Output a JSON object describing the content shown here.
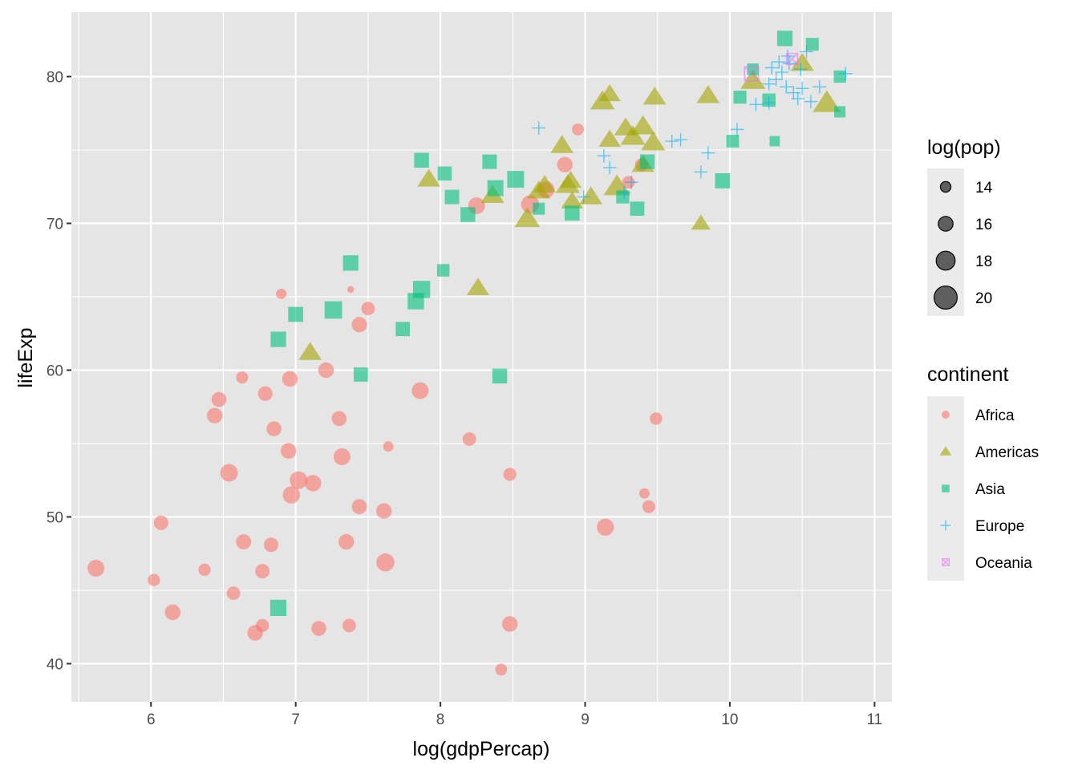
{
  "chart_data": {
    "type": "scatter",
    "xlabel": "log(gdpPercap)",
    "ylabel": "lifeExp",
    "xlim": [
      5.45,
      11.12
    ],
    "ylim": [
      37.4,
      84.4
    ],
    "x_ticks": [
      6,
      7,
      8,
      9,
      10,
      11
    ],
    "y_ticks": [
      40,
      50,
      60,
      70,
      80
    ],
    "grid": true,
    "background": "#e5e5e5",
    "legends": {
      "size": {
        "title": "log(pop)",
        "values": [
          14,
          16,
          18,
          20
        ],
        "labels": [
          "14",
          "16",
          "18",
          "20"
        ]
      },
      "color_shape": {
        "title": "continent",
        "items": [
          {
            "label": "Africa",
            "color": "#f8766d",
            "shape": "circle"
          },
          {
            "label": "Americas",
            "color": "#a3a500",
            "shape": "triangle"
          },
          {
            "label": "Asia",
            "color": "#00bf7d",
            "shape": "square"
          },
          {
            "label": "Europe",
            "color": "#00b0f6",
            "shape": "plus"
          },
          {
            "label": "Oceania",
            "color": "#e76bf3",
            "shape": "square-cross"
          }
        ]
      },
      "placement": "right"
    },
    "series": [
      {
        "name": "Africa",
        "points": [
          [
            5.62,
            46.5,
            17
          ],
          [
            6.02,
            45.7,
            14.8
          ],
          [
            6.07,
            49.6,
            15.9
          ],
          [
            6.15,
            43.5,
            16.4
          ],
          [
            6.37,
            46.4,
            14.8
          ],
          [
            6.44,
            56.9,
            16.4
          ],
          [
            6.47,
            58.0,
            16.1
          ],
          [
            6.54,
            53.0,
            17.4
          ],
          [
            6.57,
            44.8,
            15.4
          ],
          [
            6.63,
            59.5,
            14.7
          ],
          [
            6.64,
            48.3,
            16.2
          ],
          [
            6.77,
            46.3,
            15.9
          ],
          [
            6.77,
            42.6,
            15.2
          ],
          [
            6.72,
            42.1,
            16.4
          ],
          [
            6.79,
            58.4,
            15.9
          ],
          [
            6.83,
            48.1,
            15.9
          ],
          [
            6.85,
            56.0,
            16.1
          ],
          [
            6.9,
            65.2,
            13.9
          ],
          [
            6.95,
            54.5,
            16.4
          ],
          [
            6.96,
            59.4,
            16.4
          ],
          [
            6.97,
            51.5,
            17.2
          ],
          [
            7.02,
            52.5,
            17.4
          ],
          [
            7.12,
            52.3,
            16.8
          ],
          [
            7.16,
            42.4,
            16.1
          ],
          [
            7.21,
            60.0,
            16.4
          ],
          [
            7.3,
            56.7,
            16.1
          ],
          [
            7.32,
            54.1,
            17.0
          ],
          [
            7.35,
            48.3,
            16.4
          ],
          [
            7.37,
            42.6,
            15.4
          ],
          [
            7.38,
            65.5,
            12.2
          ],
          [
            7.44,
            50.7,
            16.1
          ],
          [
            7.44,
            63.1,
            16.3
          ],
          [
            7.5,
            64.2,
            15.4
          ],
          [
            7.61,
            50.4,
            16.4
          ],
          [
            7.62,
            46.9,
            17.6
          ],
          [
            7.64,
            54.8,
            13.9
          ],
          [
            7.86,
            58.6,
            17.0
          ],
          [
            8.2,
            55.3,
            15.4
          ],
          [
            8.25,
            71.2,
            17.0
          ],
          [
            8.42,
            39.6,
            14.6
          ],
          [
            8.48,
            52.9,
            15.2
          ],
          [
            8.48,
            42.7,
            16.4
          ],
          [
            8.62,
            71.3,
            17.6
          ],
          [
            8.73,
            72.3,
            17.0
          ],
          [
            8.86,
            74.0,
            16.4
          ],
          [
            8.95,
            76.4,
            14.6
          ],
          [
            9.14,
            49.3,
            17.1
          ],
          [
            9.3,
            72.8,
            15.0
          ],
          [
            9.41,
            51.6,
            13.9
          ],
          [
            9.44,
            50.7,
            15.1
          ],
          [
            9.49,
            56.7,
            14.9
          ],
          [
            9.39,
            74.0,
            15.2
          ]
        ]
      },
      {
        "name": "Americas",
        "points": [
          [
            7.1,
            61.2,
            16.4
          ],
          [
            7.92,
            73.0,
            16.3
          ],
          [
            8.26,
            65.6,
            16.2
          ],
          [
            8.36,
            71.9,
            16.5
          ],
          [
            8.6,
            70.3,
            17.2
          ],
          [
            8.68,
            72.2,
            16.4
          ],
          [
            8.72,
            72.6,
            16.2
          ],
          [
            8.84,
            75.3,
            16.4
          ],
          [
            8.88,
            72.6,
            16.7
          ],
          [
            8.9,
            72.9,
            16.0
          ],
          [
            8.91,
            71.5,
            16.1
          ],
          [
            9.04,
            71.8,
            16.4
          ],
          [
            9.12,
            78.3,
            16.9
          ],
          [
            9.17,
            78.8,
            16.0
          ],
          [
            9.22,
            72.5,
            17.6
          ],
          [
            9.28,
            76.5,
            16.4
          ],
          [
            9.33,
            75.9,
            17.0
          ],
          [
            9.4,
            74.0,
            16.3
          ],
          [
            9.4,
            76.6,
            16.9
          ],
          [
            9.47,
            75.5,
            16.8
          ],
          [
            9.48,
            78.6,
            16.4
          ],
          [
            9.8,
            70.0,
            15.2
          ],
          [
            9.85,
            78.7,
            16.4
          ],
          [
            10.16,
            79.7,
            17.0
          ],
          [
            10.5,
            80.9,
            16.5
          ],
          [
            10.67,
            78.2,
            18.0
          ],
          [
            9.17,
            75.7,
            16.1
          ]
        ]
      },
      {
        "name": "Asia",
        "points": [
          [
            6.88,
            43.8,
            17.1
          ],
          [
            6.88,
            62.1,
            16.7
          ],
          [
            7.0,
            63.8,
            16.5
          ],
          [
            7.26,
            64.1,
            17.7
          ],
          [
            7.38,
            67.3,
            16.7
          ],
          [
            7.45,
            59.7,
            16.1
          ],
          [
            7.74,
            62.8,
            16.1
          ],
          [
            7.83,
            64.7,
            17.2
          ],
          [
            7.87,
            65.5,
            17.6
          ],
          [
            7.87,
            74.3,
            16.4
          ],
          [
            8.02,
            66.8,
            15.2
          ],
          [
            8.03,
            73.4,
            16.0
          ],
          [
            8.08,
            71.8,
            16.2
          ],
          [
            8.19,
            70.6,
            16.4
          ],
          [
            8.34,
            74.2,
            16.2
          ],
          [
            8.38,
            72.4,
            17.0
          ],
          [
            8.41,
            59.6,
            16.4
          ],
          [
            8.52,
            73.0,
            17.4
          ],
          [
            8.68,
            71.0,
            15.0
          ],
          [
            8.91,
            70.7,
            16.5
          ],
          [
            9.26,
            71.8,
            15.5
          ],
          [
            9.36,
            71.0,
            16.1
          ],
          [
            9.43,
            74.2,
            16.3
          ],
          [
            9.95,
            72.9,
            16.6
          ],
          [
            10.02,
            75.6,
            15.3
          ],
          [
            10.07,
            78.6,
            15.5
          ],
          [
            10.16,
            80.5,
            14.8
          ],
          [
            10.27,
            78.4,
            15.6
          ],
          [
            10.31,
            75.6,
            14.1
          ],
          [
            10.38,
            82.6,
            16.7
          ],
          [
            10.57,
            82.2,
            15.4
          ],
          [
            10.76,
            80.0,
            15.1
          ],
          [
            10.76,
            77.6,
            14.6
          ]
        ]
      },
      {
        "name": "Europe",
        "points": [
          [
            8.68,
            76.5,
            14
          ],
          [
            8.99,
            71.8,
            14
          ],
          [
            9.13,
            74.6,
            14
          ],
          [
            9.17,
            73.8,
            14
          ],
          [
            9.27,
            72.1,
            14
          ],
          [
            9.32,
            72.8,
            14
          ],
          [
            9.6,
            75.6,
            14
          ],
          [
            9.66,
            75.7,
            14
          ],
          [
            9.8,
            73.5,
            14
          ],
          [
            9.85,
            74.8,
            14
          ],
          [
            10.05,
            76.4,
            14
          ],
          [
            10.18,
            78.1,
            14
          ],
          [
            10.27,
            79.5,
            14
          ],
          [
            10.29,
            80.6,
            14
          ],
          [
            10.32,
            79.8,
            14
          ],
          [
            10.34,
            81.0,
            14
          ],
          [
            10.36,
            80.3,
            14
          ],
          [
            10.39,
            79.3,
            14
          ],
          [
            10.41,
            80.9,
            14
          ],
          [
            10.44,
            78.9,
            14
          ],
          [
            10.47,
            78.5,
            14
          ],
          [
            10.49,
            80.5,
            14
          ],
          [
            10.5,
            79.2,
            14
          ],
          [
            10.53,
            81.7,
            14
          ],
          [
            10.56,
            78.3,
            14
          ],
          [
            10.62,
            79.3,
            14
          ],
          [
            10.8,
            80.2,
            14
          ],
          [
            10.27,
            78.2,
            14
          ],
          [
            10.4,
            81.4,
            14
          ]
        ]
      },
      {
        "name": "Oceania",
        "points": [
          [
            10.15,
            80.2,
            16.8
          ],
          [
            10.43,
            81.2,
            15.2
          ]
        ]
      }
    ]
  }
}
